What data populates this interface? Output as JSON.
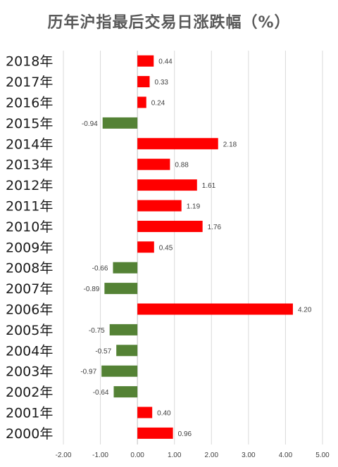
{
  "chart_data": {
    "type": "bar",
    "orientation": "horizontal",
    "title": "历年沪指最后交易日涨跌幅（%）",
    "categories": [
      "2018年",
      "2017年",
      "2016年",
      "2015年",
      "2014年",
      "2013年",
      "2012年",
      "2011年",
      "2010年",
      "2009年",
      "2008年",
      "2007年",
      "2006年",
      "2005年",
      "2004年",
      "2003年",
      "2002年",
      "2001年",
      "2000年"
    ],
    "values": [
      0.44,
      0.33,
      0.24,
      -0.94,
      2.18,
      0.88,
      1.61,
      1.19,
      1.76,
      0.45,
      -0.66,
      -0.89,
      4.2,
      -0.75,
      -0.57,
      -0.97,
      -0.64,
      0.4,
      0.96
    ],
    "data_labels": [
      "0.44",
      "0.33",
      "0.24",
      "-0.94",
      "2.18",
      "0.88",
      "1.61",
      "1.19",
      "1.76",
      "0.45",
      "-0.66",
      "-0.89",
      "4.20",
      "-0.75",
      "-0.57",
      "-0.97",
      "-0.64",
      "0.40",
      "0.96"
    ],
    "xlim": [
      -2.0,
      5.0
    ],
    "x_ticks": [
      -2,
      -1,
      0,
      1,
      2,
      3,
      4,
      5
    ],
    "x_tick_labels": [
      "-2.00",
      "-1.00",
      "0.00",
      "1.00",
      "2.00",
      "3.00",
      "4.00",
      "5.00"
    ],
    "grid": true,
    "colors": {
      "positive": "#ff0000",
      "negative": "#548235",
      "grid": "#d9d9d9",
      "axis": "#bfbfbf"
    }
  }
}
